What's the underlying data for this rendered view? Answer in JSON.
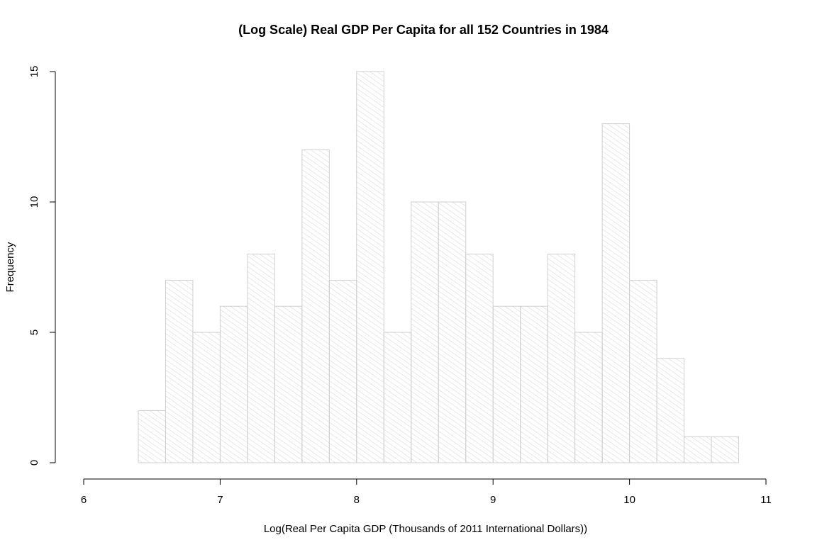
{
  "chart_data": {
    "type": "bar",
    "title": "(Log Scale) Real GDP Per Capita for  all 152 Countries in 1984",
    "xlabel": "Log(Real Per Capita GDP (Thousands of 2011 International Dollars))",
    "ylabel": "Frequency",
    "xlim": [
      6,
      11
    ],
    "ylim": [
      0,
      15
    ],
    "xticks": [
      6,
      7,
      8,
      9,
      10,
      11
    ],
    "yticks": [
      0,
      5,
      10,
      15
    ],
    "bins": [
      {
        "x0": 6.4,
        "x1": 6.6,
        "count": 2
      },
      {
        "x0": 6.6,
        "x1": 6.8,
        "count": 7
      },
      {
        "x0": 6.8,
        "x1": 7.0,
        "count": 5
      },
      {
        "x0": 7.0,
        "x1": 7.2,
        "count": 6
      },
      {
        "x0": 7.2,
        "x1": 7.4,
        "count": 8
      },
      {
        "x0": 7.4,
        "x1": 7.6,
        "count": 6
      },
      {
        "x0": 7.6,
        "x1": 7.8,
        "count": 12
      },
      {
        "x0": 7.8,
        "x1": 8.0,
        "count": 7
      },
      {
        "x0": 8.0,
        "x1": 8.2,
        "count": 15
      },
      {
        "x0": 8.2,
        "x1": 8.4,
        "count": 5
      },
      {
        "x0": 8.4,
        "x1": 8.6,
        "count": 10
      },
      {
        "x0": 8.6,
        "x1": 8.8,
        "count": 10
      },
      {
        "x0": 8.8,
        "x1": 9.0,
        "count": 8
      },
      {
        "x0": 9.0,
        "x1": 9.2,
        "count": 6
      },
      {
        "x0": 9.2,
        "x1": 9.4,
        "count": 6
      },
      {
        "x0": 9.4,
        "x1": 9.6,
        "count": 8
      },
      {
        "x0": 9.6,
        "x1": 9.8,
        "count": 5
      },
      {
        "x0": 9.8,
        "x1": 10.0,
        "count": 13
      },
      {
        "x0": 10.0,
        "x1": 10.2,
        "count": 7
      },
      {
        "x0": 10.2,
        "x1": 10.4,
        "count": 4
      },
      {
        "x0": 10.4,
        "x1": 10.6,
        "count": 1
      },
      {
        "x0": 10.6,
        "x1": 10.8,
        "count": 1
      }
    ],
    "bar_fill": "hatched",
    "bar_color": "#cfcfcf",
    "grid": false,
    "legend": "none"
  }
}
